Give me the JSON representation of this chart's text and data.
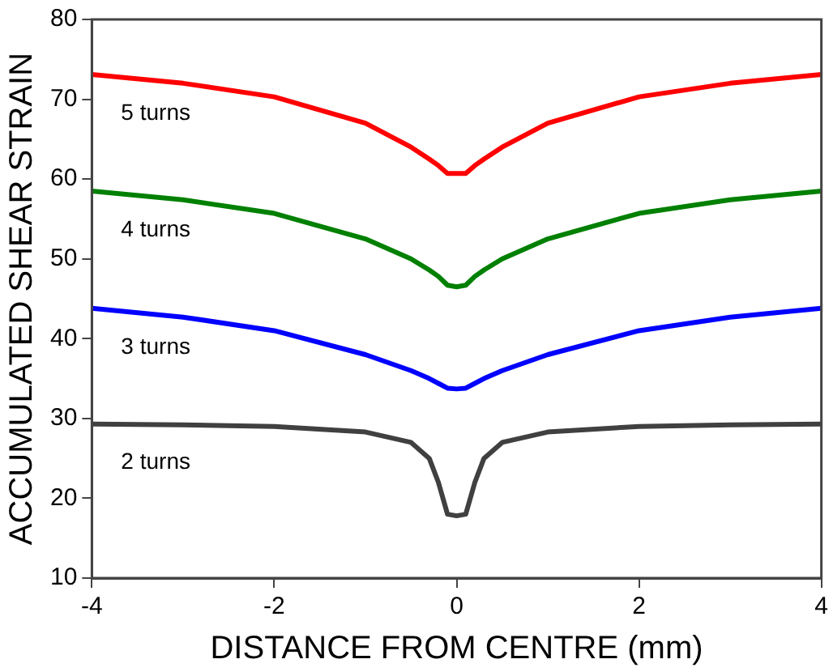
{
  "chart_data": {
    "type": "line",
    "xlabel": "DISTANCE FROM CENTRE (mm)",
    "ylabel": "ACCUMULATED SHEAR STRAIN",
    "xlim": [
      -4,
      4
    ],
    "xticks": [
      -4,
      -2,
      0,
      2,
      4
    ],
    "ylim": [
      10,
      80
    ],
    "yticks": [
      10,
      20,
      30,
      40,
      50,
      60,
      70,
      80
    ],
    "grid": false,
    "legend": false,
    "marker": "none",
    "line_style": "solid",
    "x": [
      -4,
      -3,
      -2,
      -1,
      -0.5,
      -0.3,
      -0.2,
      -0.1,
      0,
      0.1,
      0.2,
      0.3,
      0.5,
      1,
      2,
      3,
      4
    ],
    "series": [
      {
        "name": "5 turns",
        "color": "#ff0000",
        "values": [
          73.1,
          72,
          70.3,
          67,
          64,
          62.5,
          61.7,
          60.7,
          60.7,
          60.7,
          61.7,
          62.5,
          64,
          67,
          70.3,
          72,
          73.1
        ]
      },
      {
        "name": "4 turns",
        "color": "#008000",
        "values": [
          58.5,
          57.4,
          55.7,
          52.5,
          50,
          48.6,
          47.8,
          46.7,
          46.5,
          46.7,
          47.8,
          48.6,
          50,
          52.5,
          55.7,
          57.4,
          58.5
        ]
      },
      {
        "name": "3 turns",
        "color": "#0000ff",
        "values": [
          43.8,
          42.7,
          41,
          38,
          36,
          35,
          34.4,
          33.8,
          33.7,
          33.8,
          34.4,
          35,
          36,
          38,
          41,
          42.7,
          43.8
        ]
      },
      {
        "name": "2 turns",
        "color": "#404040",
        "values": [
          29.3,
          29.2,
          29,
          28.3,
          27,
          25,
          22,
          18,
          17.8,
          18,
          22,
          25,
          27,
          28.3,
          29,
          29.2,
          29.3
        ]
      }
    ]
  }
}
